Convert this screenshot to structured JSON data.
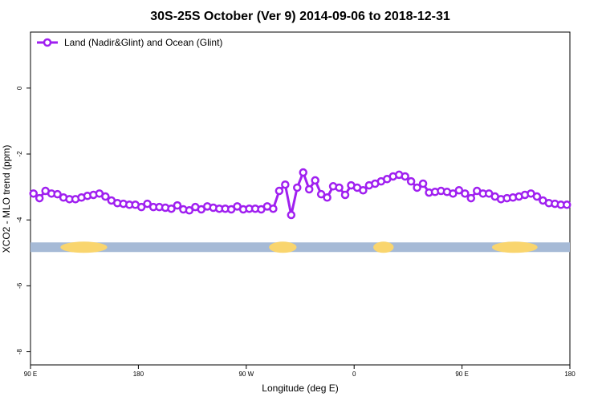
{
  "chart_data": {
    "type": "line",
    "title": "30S-25S October (Ver 9)   2014-09-06 to 2018-12-31",
    "x_label": "Longitude (deg E)",
    "y_label": "XCO2 - MLO trend (ppm)",
    "x": [
      92.5,
      97.5,
      102.5,
      107.5,
      112.5,
      117.5,
      122.5,
      127.5,
      132.5,
      137.5,
      142.5,
      147.5,
      152.5,
      157.5,
      162.5,
      167.5,
      172.5,
      177.5,
      182.5,
      187.5,
      192.5,
      197.5,
      202.5,
      207.5,
      212.5,
      217.5,
      222.5,
      227.5,
      232.5,
      237.5,
      242.5,
      247.5,
      252.5,
      257.5,
      262.5,
      267.5,
      272.5,
      277.5,
      282.5,
      287.5,
      292.5,
      297.5,
      302.5,
      307.5,
      312.5,
      317.5,
      322.5,
      327.5,
      332.5,
      337.5,
      342.5,
      347.5,
      352.5,
      357.5,
      362.5,
      367.5,
      372.5,
      377.5,
      382.5,
      387.5,
      392.5,
      397.5,
      402.5,
      407.5,
      412.5,
      417.5,
      422.5,
      427.5,
      432.5,
      437.5,
      442.5,
      447.5,
      452.5,
      457.5,
      462.5,
      467.5,
      472.5,
      477.5,
      482.5,
      487.5,
      492.5,
      497.5,
      502.5,
      507.5,
      512.5,
      517.5,
      522.5,
      527.5,
      532.5,
      537.5
    ],
    "series": [
      {
        "name": "Land (Nadir&Glint) and Ocean (Glint)",
        "color": "#a020f0",
        "values": [
          -3.2,
          -3.34,
          -3.12,
          -3.2,
          -3.22,
          -3.32,
          -3.37,
          -3.37,
          -3.32,
          -3.27,
          -3.24,
          -3.2,
          -3.29,
          -3.41,
          -3.49,
          -3.51,
          -3.54,
          -3.54,
          -3.61,
          -3.51,
          -3.61,
          -3.61,
          -3.63,
          -3.66,
          -3.56,
          -3.68,
          -3.71,
          -3.61,
          -3.68,
          -3.59,
          -3.63,
          -3.66,
          -3.66,
          -3.68,
          -3.59,
          -3.68,
          -3.66,
          -3.66,
          -3.68,
          -3.59,
          -3.66,
          -3.12,
          -2.93,
          -3.85,
          -3.02,
          -2.56,
          -3.07,
          -2.8,
          -3.22,
          -3.32,
          -2.98,
          -3.02,
          -3.24,
          -2.95,
          -3.02,
          -3.1,
          -2.95,
          -2.9,
          -2.83,
          -2.76,
          -2.68,
          -2.63,
          -2.68,
          -2.83,
          -3.02,
          -2.9,
          -3.17,
          -3.15,
          -3.12,
          -3.15,
          -3.2,
          -3.1,
          -3.2,
          -3.34,
          -3.12,
          -3.2,
          -3.2,
          -3.29,
          -3.37,
          -3.34,
          -3.32,
          -3.29,
          -3.24,
          -3.2,
          -3.29,
          -3.41,
          -3.49,
          -3.51,
          -3.54,
          -3.54
        ]
      }
    ],
    "surface_band": {
      "y": -4.83,
      "ocean_color": "#a6bad6",
      "land_color": "#f9d56e",
      "land": [
        [
          115,
          154
        ],
        [
          289,
          312
        ],
        [
          376,
          393
        ],
        [
          475,
          513
        ]
      ]
    },
    "xlim": [
      90,
      540
    ],
    "xticks": [
      {
        "value": 90,
        "label": "90 E"
      },
      180,
      {
        "value": 270,
        "label": "90 W"
      },
      {
        "value": 360,
        "label": "0"
      },
      {
        "value": 450,
        "label": "90 E"
      },
      {
        "value": 540,
        "label": "180"
      }
    ],
    "ylim": [
      -8.4,
      1.7
    ],
    "yticks": [
      -8,
      -6,
      -4,
      -2,
      0
    ],
    "legend": "top-left"
  }
}
